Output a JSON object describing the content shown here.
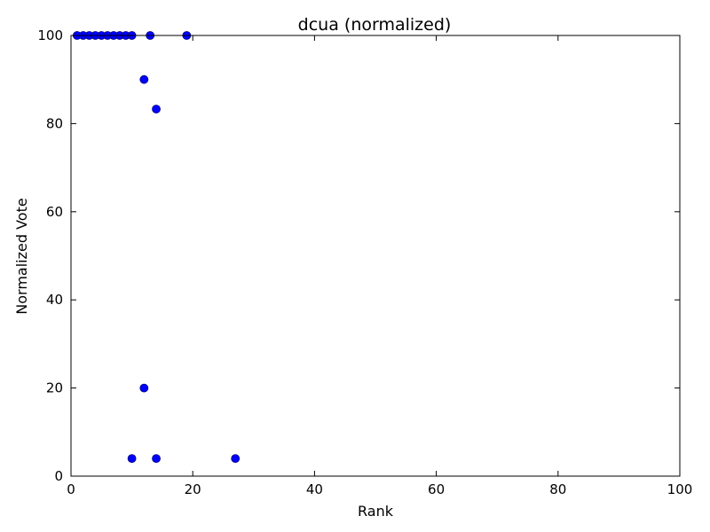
{
  "chart_data": {
    "type": "scatter",
    "title": "dcua (normalized)",
    "xlabel": "Rank",
    "ylabel": "Normalized Vote",
    "xlim": [
      0,
      100
    ],
    "ylim": [
      0,
      100
    ],
    "xticks": [
      0,
      20,
      40,
      60,
      80,
      100
    ],
    "yticks": [
      0,
      20,
      40,
      60,
      80,
      100
    ],
    "grid": false,
    "legend": "none",
    "point_color": "#0000ff",
    "point_edge_color": "#000080",
    "series": [
      {
        "points": [
          {
            "x": 1,
            "y": 100
          },
          {
            "x": 2,
            "y": 100
          },
          {
            "x": 3,
            "y": 100
          },
          {
            "x": 4,
            "y": 100
          },
          {
            "x": 5,
            "y": 100
          },
          {
            "x": 6,
            "y": 100
          },
          {
            "x": 7,
            "y": 100
          },
          {
            "x": 8,
            "y": 100
          },
          {
            "x": 9,
            "y": 100
          },
          {
            "x": 10,
            "y": 100
          },
          {
            "x": 13,
            "y": 100
          },
          {
            "x": 19,
            "y": 100
          },
          {
            "x": 12,
            "y": 90
          },
          {
            "x": 14,
            "y": 83.3
          },
          {
            "x": 12,
            "y": 20
          },
          {
            "x": 10,
            "y": 4
          },
          {
            "x": 14,
            "y": 4
          },
          {
            "x": 27,
            "y": 4
          }
        ]
      }
    ]
  }
}
